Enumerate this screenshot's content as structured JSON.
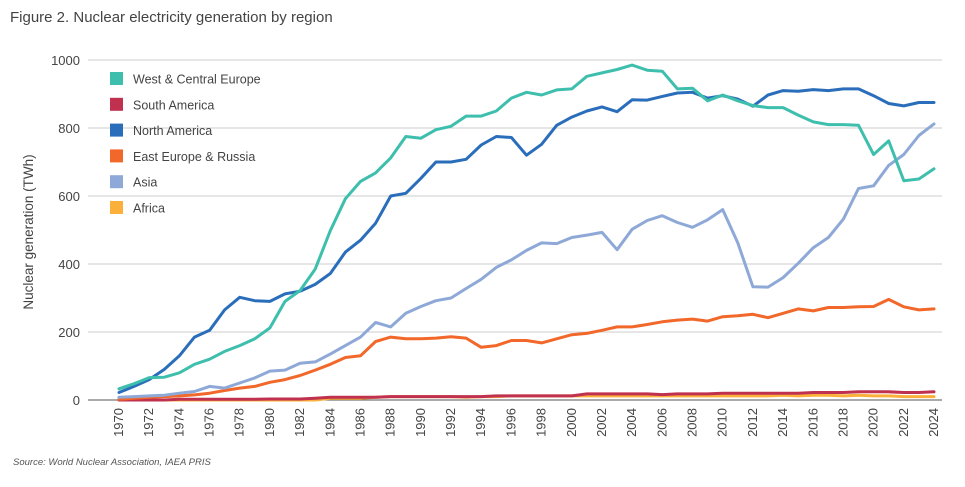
{
  "title": "Figure 2. Nuclear electricity generation by region",
  "source": "Source: World Nuclear Association, IAEA PRIS",
  "chart_data": {
    "type": "line",
    "ylabel": "Nuclear generation (TWh)",
    "xlabel": "",
    "ylim": [
      0,
      1000
    ],
    "xlim": [
      1970,
      2024
    ],
    "yticks": [
      0,
      200,
      400,
      600,
      800,
      1000
    ],
    "ytick_labels": [
      "0",
      "200",
      "400",
      "600",
      "800",
      "1000"
    ],
    "xtick_labels": [
      "1970",
      "1972",
      "1974",
      "1976",
      "1978",
      "1980",
      "1982",
      "1984",
      "1986",
      "1988",
      "1990",
      "1992",
      "1994",
      "1996",
      "1998",
      "2000",
      "2002",
      "2004",
      "2006",
      "2008",
      "2010",
      "2012",
      "2014",
      "2016",
      "2018",
      "2020",
      "2022",
      "2024"
    ],
    "grid": "horizontal",
    "legend_position": "top-left",
    "x": [
      1970,
      1971,
      1972,
      1973,
      1974,
      1975,
      1976,
      1977,
      1978,
      1979,
      1980,
      1981,
      1982,
      1983,
      1984,
      1985,
      1986,
      1987,
      1988,
      1989,
      1990,
      1991,
      1992,
      1993,
      1994,
      1995,
      1996,
      1997,
      1998,
      1999,
      2000,
      2001,
      2002,
      2003,
      2004,
      2005,
      2006,
      2007,
      2008,
      2009,
      2010,
      2011,
      2012,
      2013,
      2014,
      2015,
      2016,
      2017,
      2018,
      2019,
      2020,
      2021,
      2022,
      2023,
      2024
    ],
    "series": [
      {
        "name": "West & Central Europe",
        "color": "#3ebfad",
        "values": [
          33,
          48,
          66,
          67,
          80,
          105,
          120,
          143,
          160,
          180,
          212,
          290,
          322,
          385,
          498,
          592,
          643,
          668,
          712,
          775,
          770,
          795,
          805,
          835,
          835,
          850,
          888,
          905,
          897,
          912,
          915,
          952,
          962,
          972,
          985,
          970,
          967,
          915,
          917,
          880,
          897,
          880,
          866,
          860,
          860,
          838,
          818,
          810,
          810,
          808,
          722,
          762,
          645,
          650,
          680
        ]
      },
      {
        "name": "South America",
        "color": "#c0304f",
        "values": [
          0,
          0,
          0,
          0,
          2,
          2,
          2,
          2,
          2,
          2,
          3,
          3,
          3,
          5,
          8,
          8,
          8,
          8,
          10,
          10,
          10,
          10,
          10,
          10,
          10,
          12,
          12,
          12,
          12,
          12,
          12,
          18,
          18,
          18,
          18,
          18,
          16,
          18,
          18,
          18,
          20,
          20,
          20,
          20,
          20,
          20,
          22,
          22,
          22,
          24,
          24,
          24,
          22,
          22,
          24
        ]
      },
      {
        "name": "North America",
        "color": "#2a6ebb",
        "values": [
          22,
          40,
          60,
          90,
          130,
          185,
          205,
          265,
          302,
          292,
          290,
          312,
          320,
          340,
          372,
          435,
          470,
          520,
          600,
          608,
          652,
          700,
          700,
          708,
          750,
          775,
          772,
          720,
          752,
          808,
          832,
          850,
          862,
          848,
          883,
          882,
          893,
          903,
          905,
          888,
          895,
          885,
          864,
          897,
          910,
          908,
          913,
          910,
          915,
          915,
          895,
          872,
          865,
          875,
          875
        ]
      },
      {
        "name": "East Europe & Russia",
        "color": "#f2682a",
        "values": [
          2,
          5,
          8,
          10,
          12,
          15,
          20,
          28,
          35,
          40,
          52,
          60,
          72,
          88,
          105,
          125,
          130,
          172,
          185,
          180,
          180,
          182,
          186,
          182,
          155,
          160,
          175,
          175,
          168,
          180,
          192,
          196,
          205,
          215,
          215,
          222,
          230,
          235,
          238,
          232,
          245,
          248,
          252,
          242,
          255,
          268,
          262,
          272,
          272,
          274,
          275,
          296,
          274,
          265,
          268
        ]
      },
      {
        "name": "Asia",
        "color": "#8ea9d7",
        "values": [
          8,
          10,
          12,
          14,
          20,
          25,
          40,
          35,
          50,
          65,
          85,
          88,
          108,
          112,
          135,
          160,
          185,
          228,
          215,
          255,
          275,
          292,
          300,
          328,
          355,
          390,
          412,
          440,
          462,
          460,
          478,
          485,
          493,
          442,
          502,
          528,
          542,
          522,
          508,
          530,
          560,
          462,
          333,
          332,
          360,
          402,
          448,
          478,
          532,
          622,
          630,
          690,
          722,
          778,
          812
        ]
      },
      {
        "name": "Africa",
        "color": "#fbb03b",
        "values": [
          0,
          0,
          0,
          0,
          0,
          0,
          0,
          0,
          0,
          0,
          0,
          0,
          0,
          0,
          5,
          5,
          5,
          8,
          10,
          10,
          10,
          10,
          10,
          8,
          10,
          10,
          12,
          12,
          12,
          12,
          12,
          12,
          12,
          12,
          12,
          12,
          12,
          12,
          12,
          12,
          12,
          12,
          12,
          12,
          14,
          12,
          14,
          14,
          12,
          14,
          12,
          12,
          10,
          10,
          10
        ]
      }
    ]
  }
}
